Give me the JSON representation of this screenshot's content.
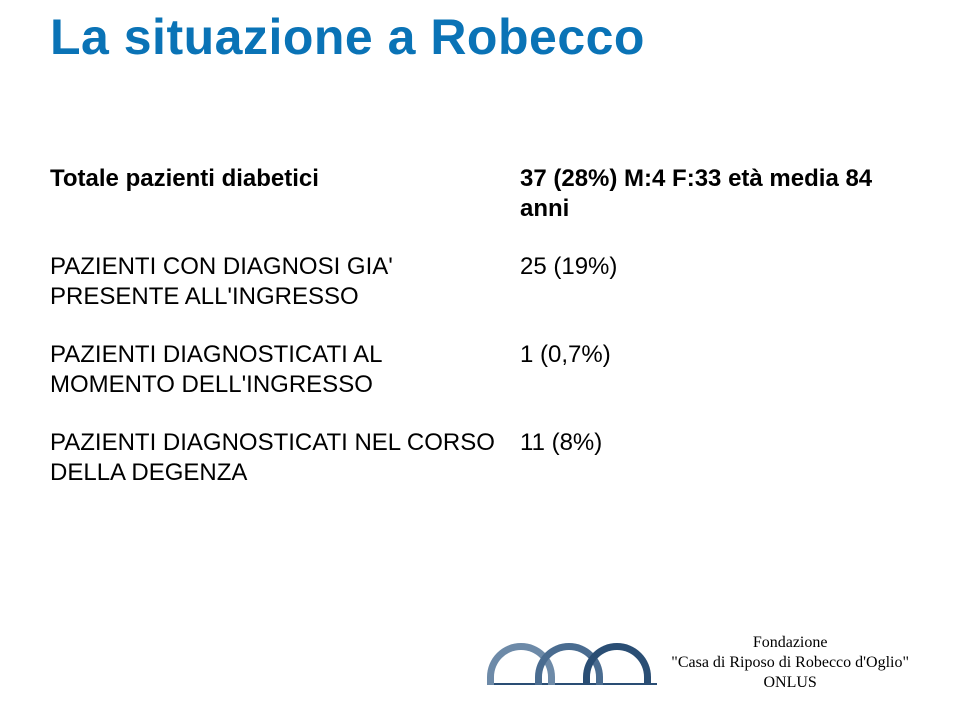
{
  "title": {
    "text": "La situazione a Robecco",
    "color": "#0a73b6"
  },
  "table": {
    "rows": [
      {
        "left": "Totale pazienti diabetici",
        "right": "37 (28%) M:4  F:33  età media 84 anni",
        "bold": true
      },
      {
        "left": "PAZIENTI CON DIAGNOSI GIA' PRESENTE ALL'INGRESSO",
        "right": "25 (19%)",
        "bold": false
      },
      {
        "left": "PAZIENTI DIAGNOSTICATI AL MOMENTO DELL'INGRESSO",
        "right": "1 (0,7%)",
        "bold": false
      },
      {
        "left": "PAZIENTI DIAGNOSTICATI NEL CORSO DELLA DEGENZA",
        "right": "11 (8%)",
        "bold": false
      }
    ]
  },
  "logo": {
    "arch_colors": [
      "#6d8aa8",
      "#4a6c90",
      "#2a4e74"
    ],
    "line1": "Fondazione",
    "line2": "\"Casa di Riposo di Robecco d'Oglio\"",
    "line3": "ONLUS"
  }
}
